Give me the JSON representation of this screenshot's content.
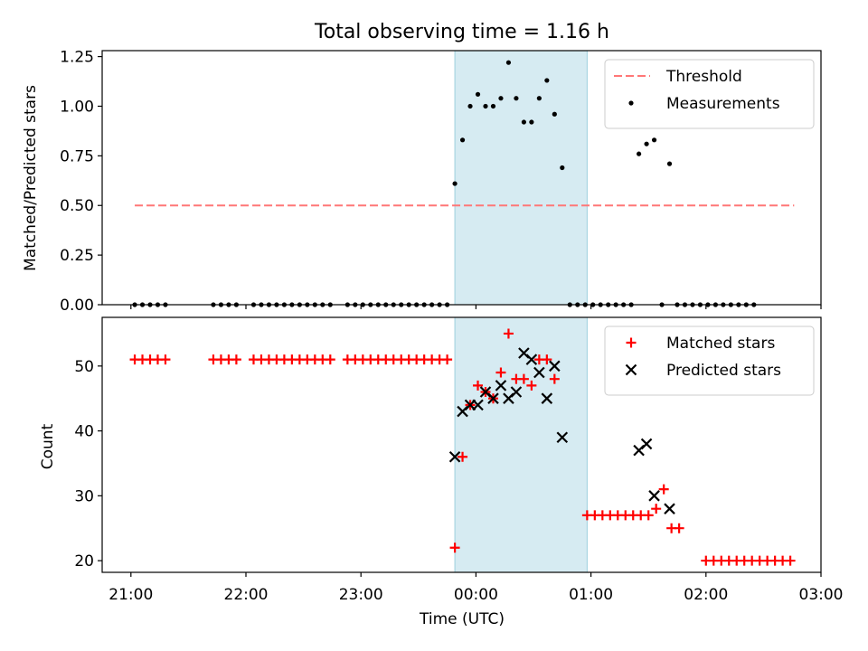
{
  "chart_data": [
    {
      "type": "scatter",
      "title": "Total observing time = 1.16 h",
      "xlabel": "",
      "ylabel": "Matched/Predicted stars",
      "xlim": [
        "20:45",
        "03:00"
      ],
      "ylim": [
        0,
        1.28
      ],
      "yticks": [
        "0.00",
        "0.25",
        "0.50",
        "0.75",
        "1.00",
        "1.25"
      ],
      "shaded_span": [
        "23:49",
        "00:58"
      ],
      "legend": "top-right",
      "threshold": {
        "name": "Threshold",
        "value": 0.5,
        "x": [
          "21:02",
          "02:46"
        ],
        "color": "#ff7777"
      },
      "series": [
        {
          "name": "Measurements",
          "color": "#000000",
          "marker": "dot",
          "points": [
            [
              "21:02",
              0
            ],
            [
              "21:06",
              0
            ],
            [
              "21:10",
              0
            ],
            [
              "21:14",
              0
            ],
            [
              "21:18",
              0
            ],
            [
              "21:43",
              0
            ],
            [
              "21:47",
              0
            ],
            [
              "21:51",
              0
            ],
            [
              "21:55",
              0
            ],
            [
              "22:04",
              0
            ],
            [
              "22:08",
              0
            ],
            [
              "22:12",
              0
            ],
            [
              "22:16",
              0
            ],
            [
              "22:20",
              0
            ],
            [
              "22:24",
              0
            ],
            [
              "22:28",
              0
            ],
            [
              "22:32",
              0
            ],
            [
              "22:36",
              0
            ],
            [
              "22:40",
              0
            ],
            [
              "22:44",
              0
            ],
            [
              "22:53",
              0
            ],
            [
              "22:57",
              0
            ],
            [
              "23:01",
              0
            ],
            [
              "23:05",
              0
            ],
            [
              "23:09",
              0
            ],
            [
              "23:13",
              0
            ],
            [
              "23:17",
              0
            ],
            [
              "23:21",
              0
            ],
            [
              "23:25",
              0
            ],
            [
              "23:29",
              0
            ],
            [
              "23:33",
              0
            ],
            [
              "23:37",
              0
            ],
            [
              "23:41",
              0
            ],
            [
              "23:45",
              0
            ],
            [
              "23:49",
              0.61
            ],
            [
              "23:53",
              0.83
            ],
            [
              "23:57",
              1.0
            ],
            [
              "00:01",
              1.06
            ],
            [
              "00:05",
              1.0
            ],
            [
              "00:09",
              1.0
            ],
            [
              "00:13",
              1.04
            ],
            [
              "00:17",
              1.22
            ],
            [
              "00:21",
              1.04
            ],
            [
              "00:25",
              0.92
            ],
            [
              "00:29",
              0.92
            ],
            [
              "00:33",
              1.04
            ],
            [
              "00:37",
              1.13
            ],
            [
              "00:41",
              0.96
            ],
            [
              "00:45",
              0.69
            ],
            [
              "00:49",
              0
            ],
            [
              "00:53",
              0
            ],
            [
              "00:57",
              0
            ],
            [
              "01:01",
              0
            ],
            [
              "01:05",
              0
            ],
            [
              "01:09",
              0
            ],
            [
              "01:13",
              0
            ],
            [
              "01:17",
              0
            ],
            [
              "01:21",
              0
            ],
            [
              "01:25",
              0.76
            ],
            [
              "01:29",
              0.81
            ],
            [
              "01:33",
              0.83
            ],
            [
              "01:37",
              0
            ],
            [
              "01:41",
              0.71
            ],
            [
              "01:45",
              0
            ],
            [
              "01:49",
              0
            ],
            [
              "01:53",
              0
            ],
            [
              "01:57",
              0
            ],
            [
              "02:01",
              0
            ],
            [
              "02:05",
              0
            ],
            [
              "02:09",
              0
            ],
            [
              "02:13",
              0
            ],
            [
              "02:17",
              0
            ],
            [
              "02:21",
              0
            ],
            [
              "02:25",
              0
            ]
          ]
        }
      ]
    },
    {
      "type": "scatter",
      "title": "",
      "xlabel": "Time (UTC)",
      "ylabel": "Count",
      "xlim": [
        "20:45",
        "03:00"
      ],
      "ylim": [
        18.2,
        57.5
      ],
      "yticks": [
        "20",
        "30",
        "40",
        "50"
      ],
      "xticks": [
        "21:00",
        "22:00",
        "23:00",
        "00:00",
        "01:00",
        "02:00",
        "03:00"
      ],
      "shaded_span": [
        "23:49",
        "00:58"
      ],
      "legend": "top-right",
      "series": [
        {
          "name": "Matched stars",
          "color": "#ff0000",
          "marker": "plus",
          "points": [
            [
              "21:02",
              51
            ],
            [
              "21:06",
              51
            ],
            [
              "21:10",
              51
            ],
            [
              "21:14",
              51
            ],
            [
              "21:18",
              51
            ],
            [
              "21:43",
              51
            ],
            [
              "21:47",
              51
            ],
            [
              "21:51",
              51
            ],
            [
              "21:55",
              51
            ],
            [
              "22:04",
              51
            ],
            [
              "22:08",
              51
            ],
            [
              "22:12",
              51
            ],
            [
              "22:16",
              51
            ],
            [
              "22:20",
              51
            ],
            [
              "22:24",
              51
            ],
            [
              "22:28",
              51
            ],
            [
              "22:32",
              51
            ],
            [
              "22:36",
              51
            ],
            [
              "22:40",
              51
            ],
            [
              "22:44",
              51
            ],
            [
              "22:53",
              51
            ],
            [
              "22:57",
              51
            ],
            [
              "23:01",
              51
            ],
            [
              "23:05",
              51
            ],
            [
              "23:09",
              51
            ],
            [
              "23:13",
              51
            ],
            [
              "23:17",
              51
            ],
            [
              "23:21",
              51
            ],
            [
              "23:25",
              51
            ],
            [
              "23:29",
              51
            ],
            [
              "23:33",
              51
            ],
            [
              "23:37",
              51
            ],
            [
              "23:41",
              51
            ],
            [
              "23:45",
              51
            ],
            [
              "23:49",
              22
            ],
            [
              "23:53",
              36
            ],
            [
              "23:57",
              44
            ],
            [
              "00:01",
              47
            ],
            [
              "00:05",
              46
            ],
            [
              "00:09",
              45
            ],
            [
              "00:13",
              49
            ],
            [
              "00:17",
              55
            ],
            [
              "00:21",
              48
            ],
            [
              "00:25",
              48
            ],
            [
              "00:29",
              47
            ],
            [
              "00:33",
              51
            ],
            [
              "00:37",
              51
            ],
            [
              "00:41",
              48
            ],
            [
              "00:58",
              27
            ],
            [
              "01:02",
              27
            ],
            [
              "01:06",
              27
            ],
            [
              "01:10",
              27
            ],
            [
              "01:14",
              27
            ],
            [
              "01:18",
              27
            ],
            [
              "01:22",
              27
            ],
            [
              "01:26",
              27
            ],
            [
              "01:30",
              27
            ],
            [
              "01:34",
              28
            ],
            [
              "01:38",
              31
            ],
            [
              "01:42",
              25
            ],
            [
              "01:46",
              25
            ],
            [
              "02:00",
              20
            ],
            [
              "02:04",
              20
            ],
            [
              "02:08",
              20
            ],
            [
              "02:12",
              20
            ],
            [
              "02:16",
              20
            ],
            [
              "02:20",
              20
            ],
            [
              "02:24",
              20
            ],
            [
              "02:28",
              20
            ],
            [
              "02:32",
              20
            ],
            [
              "02:36",
              20
            ],
            [
              "02:40",
              20
            ],
            [
              "02:44",
              20
            ]
          ]
        },
        {
          "name": "Predicted stars",
          "color": "#000000",
          "marker": "x",
          "points": [
            [
              "23:49",
              36
            ],
            [
              "23:53",
              43
            ],
            [
              "23:57",
              44
            ],
            [
              "00:01",
              44
            ],
            [
              "00:05",
              46
            ],
            [
              "00:09",
              45
            ],
            [
              "00:13",
              47
            ],
            [
              "00:17",
              45
            ],
            [
              "00:21",
              46
            ],
            [
              "00:25",
              52
            ],
            [
              "00:29",
              51
            ],
            [
              "00:33",
              49
            ],
            [
              "00:37",
              45
            ],
            [
              "00:41",
              50
            ],
            [
              "00:45",
              39
            ],
            [
              "01:25",
              37
            ],
            [
              "01:29",
              38
            ],
            [
              "01:33",
              30
            ],
            [
              "01:41",
              28
            ]
          ]
        }
      ]
    }
  ]
}
